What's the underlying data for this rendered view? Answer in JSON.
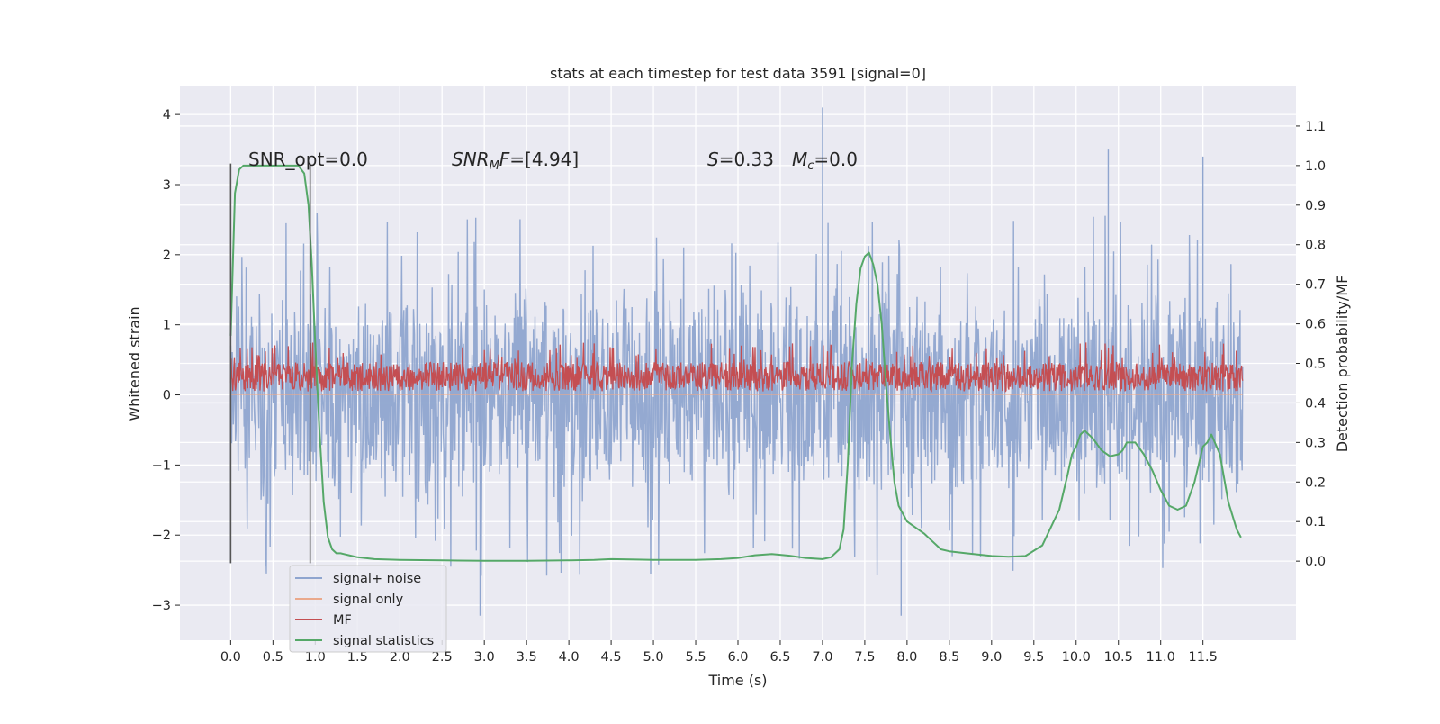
{
  "chart_data": {
    "type": "line",
    "title": "stats at each timestep for test data 3591 [signal=0]",
    "xlabel": "Time (s)",
    "ylabel": "Whitened strain",
    "y2label": "Detection probability/MF",
    "xlim": [
      -0.6,
      12.6
    ],
    "ylim": [
      -3.5,
      4.4
    ],
    "y2lim": [
      -0.2,
      1.2
    ],
    "x_ticks": [
      0.0,
      0.5,
      1.0,
      1.5,
      2.0,
      2.5,
      3.0,
      3.5,
      4.0,
      4.5,
      5.0,
      5.5,
      6.0,
      6.5,
      7.0,
      7.5,
      8.0,
      8.5,
      9.0,
      9.5,
      10.0,
      10.5,
      11.0,
      11.5
    ],
    "x_tick_labels": [
      "0.0",
      "0.5",
      "1.0",
      "1.5",
      "2.0",
      "2.5",
      "3.0",
      "3.5",
      "4.0",
      "4.5",
      "5.0",
      "5.5",
      "6.0",
      "6.5",
      "7.0",
      "7.5",
      "8.0",
      "8.5",
      "9.0",
      "9.5",
      "10.0",
      "10.5",
      "11.0",
      "11.5"
    ],
    "y_ticks": [
      -3,
      -2,
      -1,
      0,
      1,
      2,
      3,
      4
    ],
    "y_tick_labels": [
      "−3",
      "−2",
      "−1",
      "0",
      "1",
      "2",
      "3",
      "4"
    ],
    "y2_ticks": [
      0.0,
      0.1,
      0.2,
      0.3,
      0.4,
      0.5,
      0.6,
      0.7,
      0.8,
      0.9,
      1.0,
      1.1
    ],
    "y2_tick_labels": [
      "0.0",
      "0.1",
      "0.2",
      "0.3",
      "0.4",
      "0.5",
      "0.6",
      "0.7",
      "0.8",
      "0.9",
      "1.0",
      "1.1"
    ],
    "grid": true,
    "legend_position": "lower-left",
    "annotations": {
      "snr_opt": "SNR_opt=0.0",
      "snr_mf_sym": "SNR",
      "snr_mf_sub": "M",
      "snr_mf_rest": "F=[4.94]",
      "s_sym": "S",
      "s_val": "=0.33",
      "mc_sym": "M",
      "mc_sub": "c",
      "mc_val": "=0.0"
    },
    "markers": [
      0.0,
      0.94
    ],
    "series": [
      {
        "name": "signal+ noise",
        "color": "#8fa5cf",
        "axis": "left",
        "style": "noise",
        "x_range": [
          0.0,
          11.97
        ],
        "envelope_typical": [
          -1.6,
          1.6
        ],
        "extremes": [
          -3.15,
          4.1
        ]
      },
      {
        "name": "signal only",
        "color": "#eaa98c",
        "axis": "left",
        "style": "flat",
        "value": 0.0
      },
      {
        "name": "MF",
        "color": "#c44e52",
        "axis": "left",
        "style": "noise",
        "x_range": [
          0.0,
          11.97
        ],
        "envelope_typical": [
          0.05,
          0.5
        ],
        "extremes": [
          0.0,
          1.0
        ]
      },
      {
        "name": "signal statistics",
        "color": "#55a868",
        "axis": "right",
        "style": "line",
        "x": [
          0.0,
          0.05,
          0.1,
          0.15,
          0.2,
          0.3,
          0.5,
          0.7,
          0.8,
          0.87,
          0.92,
          0.96,
          1.0,
          1.05,
          1.1,
          1.15,
          1.2,
          1.25,
          1.3,
          1.4,
          1.5,
          1.7,
          2.0,
          2.5,
          3.0,
          3.5,
          4.0,
          4.3,
          4.5,
          4.8,
          5.0,
          5.5,
          5.8,
          6.0,
          6.2,
          6.4,
          6.6,
          6.8,
          7.0,
          7.1,
          7.2,
          7.25,
          7.3,
          7.35,
          7.4,
          7.45,
          7.5,
          7.55,
          7.6,
          7.65,
          7.7,
          7.75,
          7.8,
          7.85,
          7.9,
          8.0,
          8.1,
          8.2,
          8.3,
          8.4,
          8.5,
          8.7,
          9.0,
          9.2,
          9.4,
          9.6,
          9.8,
          9.9,
          9.95,
          10.0,
          10.05,
          10.1,
          10.2,
          10.3,
          10.4,
          10.5,
          10.55,
          10.6,
          10.7,
          10.8,
          10.9,
          11.0,
          11.1,
          11.2,
          11.3,
          11.4,
          11.5,
          11.55,
          11.6,
          11.7,
          11.8,
          11.9,
          11.95
        ],
        "y": [
          0.57,
          0.93,
          0.99,
          1.0,
          1.0,
          1.0,
          1.0,
          1.0,
          1.0,
          0.98,
          0.9,
          0.75,
          0.55,
          0.33,
          0.15,
          0.06,
          0.03,
          0.02,
          0.02,
          0.015,
          0.01,
          0.005,
          0.003,
          0.002,
          0.001,
          0.001,
          0.002,
          0.003,
          0.005,
          0.004,
          0.003,
          0.003,
          0.005,
          0.008,
          0.015,
          0.018,
          0.014,
          0.008,
          0.005,
          0.01,
          0.03,
          0.08,
          0.25,
          0.5,
          0.65,
          0.74,
          0.77,
          0.78,
          0.75,
          0.7,
          0.6,
          0.45,
          0.32,
          0.2,
          0.14,
          0.1,
          0.085,
          0.07,
          0.05,
          0.03,
          0.025,
          0.02,
          0.013,
          0.011,
          0.013,
          0.04,
          0.13,
          0.22,
          0.27,
          0.29,
          0.32,
          0.33,
          0.31,
          0.28,
          0.265,
          0.27,
          0.28,
          0.3,
          0.3,
          0.27,
          0.23,
          0.18,
          0.14,
          0.13,
          0.14,
          0.2,
          0.29,
          0.3,
          0.32,
          0.27,
          0.15,
          0.08,
          0.06
        ]
      }
    ]
  }
}
